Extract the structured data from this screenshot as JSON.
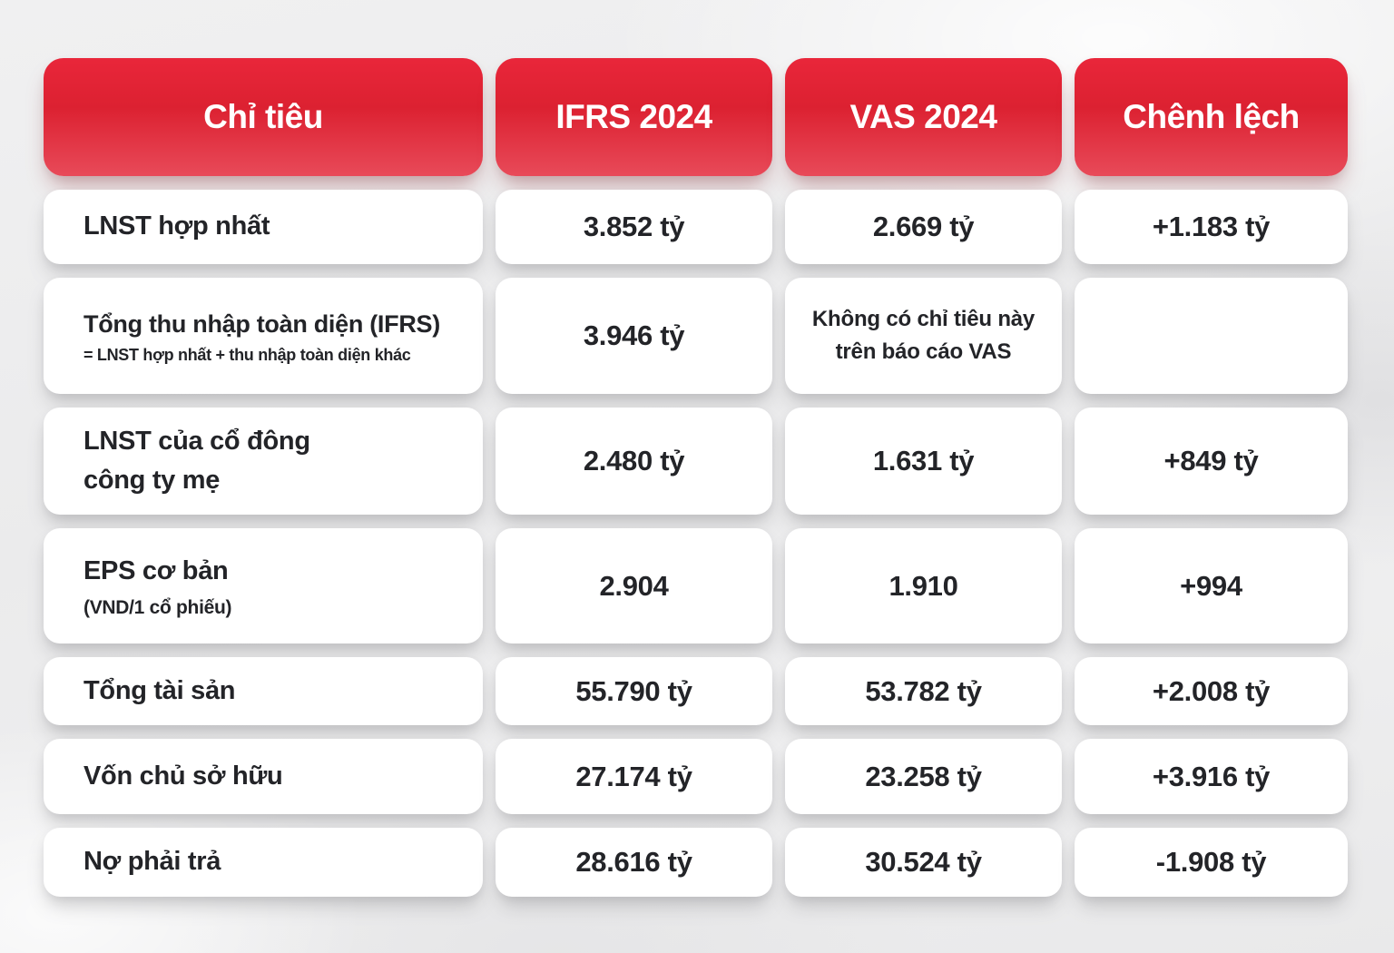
{
  "colors": {
    "header_red_top": "#e9263a",
    "header_red_mid": "#dc2131",
    "header_red_bottom": "#e84a59",
    "cell_background": "#ffffff",
    "text": "#232428",
    "page_background": "#ebebec"
  },
  "table": {
    "headers": [
      "Chỉ tiêu",
      "IFRS 2024",
      "VAS 2024",
      "Chênh lệch"
    ],
    "rows": [
      {
        "label": "LNST hợp nhất",
        "sub": "",
        "ifrs": "3.852 tỷ",
        "vas": "2.669 tỷ",
        "diff": "+1.183 tỷ"
      },
      {
        "label": "Tổng thu nhập toàn diện (IFRS)",
        "sub": "= LNST hợp nhất + thu nhập toàn diện khác",
        "ifrs": "3.946 tỷ",
        "vas": "Không có chỉ tiêu này trên báo cáo VAS",
        "diff": ""
      },
      {
        "label": "LNST của cổ đông\ncông ty mẹ",
        "sub": "",
        "ifrs": "2.480 tỷ",
        "vas": "1.631 tỷ",
        "diff": "+849 tỷ"
      },
      {
        "label": "EPS cơ bản",
        "sub": "(VND/1 cổ phiếu)",
        "ifrs": "2.904",
        "vas": "1.910",
        "diff": "+994"
      },
      {
        "label": "Tổng tài sản",
        "sub": "",
        "ifrs": "55.790 tỷ",
        "vas": "53.782 tỷ",
        "diff": "+2.008 tỷ"
      },
      {
        "label": "Vốn chủ sở hữu",
        "sub": "",
        "ifrs": "27.174 tỷ",
        "vas": "23.258 tỷ",
        "diff": "+3.916 tỷ"
      },
      {
        "label": "Nợ phải trả",
        "sub": "",
        "ifrs": "28.616 tỷ",
        "vas": "30.524 tỷ",
        "diff": "-1.908 tỷ"
      }
    ]
  },
  "chart_data": {
    "type": "table",
    "title": "",
    "columns": [
      "Chỉ tiêu",
      "IFRS 2024",
      "VAS 2024",
      "Chênh lệch"
    ],
    "rows": [
      [
        "LNST hợp nhất",
        "3.852 tỷ",
        "2.669 tỷ",
        "+1.183 tỷ"
      ],
      [
        "Tổng thu nhập toàn diện (IFRS) = LNST hợp nhất + thu nhập toàn diện khác",
        "3.946 tỷ",
        "Không có chỉ tiêu này trên báo cáo VAS",
        ""
      ],
      [
        "LNST của cổ đông công ty mẹ",
        "2.480 tỷ",
        "1.631 tỷ",
        "+849 tỷ"
      ],
      [
        "EPS cơ bản (VND/1 cổ phiếu)",
        "2.904",
        "1.910",
        "+994"
      ],
      [
        "Tổng tài sản",
        "55.790 tỷ",
        "53.782 tỷ",
        "+2.008 tỷ"
      ],
      [
        "Vốn chủ sở hữu",
        "27.174 tỷ",
        "23.258 tỷ",
        "+3.916 tỷ"
      ],
      [
        "Nợ phải trả",
        "28.616 tỷ",
        "30.524 tỷ",
        "-1.908 tỷ"
      ]
    ]
  }
}
